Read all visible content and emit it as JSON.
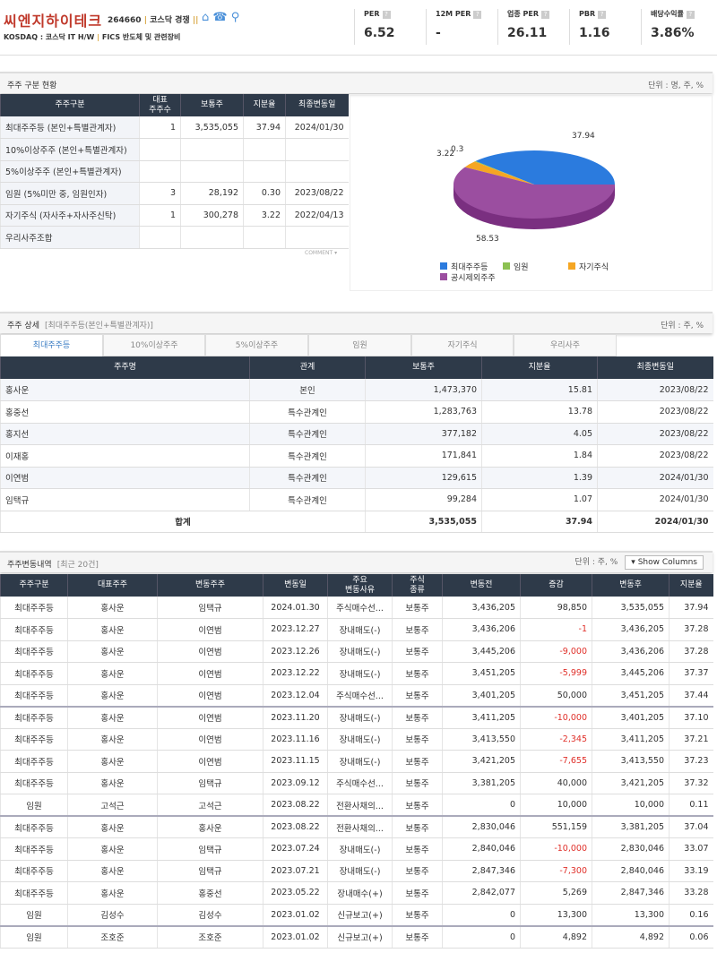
{
  "header": {
    "company": "씨엔지하이테크",
    "code": "264660",
    "market_info": "코스닥 경쟁",
    "sub_market": "KOSDAQ : 코스닥 IT H/W",
    "sector": "FICS 반도체 및 관련장비",
    "metrics": [
      {
        "label": "PER",
        "value": "6.52"
      },
      {
        "label": "12M PER",
        "value": "-"
      },
      {
        "label": "업종 PER",
        "value": "26.11"
      },
      {
        "label": "PBR",
        "value": "1.16"
      },
      {
        "label": "배당수익률",
        "value": "3.86%"
      }
    ]
  },
  "section1": {
    "title": "주주 구분 현황",
    "unit": "단위 : 명, 주, %",
    "headers": [
      "주주구분",
      "대표\n주주수",
      "보통주",
      "지분율",
      "최종변동일"
    ],
    "rows": [
      [
        "최대주주등 (본인+특별관계자)",
        "1",
        "3,535,055",
        "37.94",
        "2024/01/30"
      ],
      [
        "10%이상주주 (본인+특별관계자)",
        "",
        "",
        "",
        ""
      ],
      [
        "5%이상주주 (본인+특별관계자)",
        "",
        "",
        "",
        ""
      ],
      [
        "임원 (5%미만 중, 임원인자)",
        "3",
        "28,192",
        "0.30",
        "2023/08/22"
      ],
      [
        "자기주식 (자사주+자사주신탁)",
        "1",
        "300,278",
        "3.22",
        "2022/04/13"
      ],
      [
        "우리사주조합",
        "",
        "",
        "",
        ""
      ]
    ],
    "comment": "COMMENT"
  },
  "chart_data": {
    "type": "pie",
    "slices": [
      {
        "name": "최대주주등",
        "value": 37.94,
        "color": "#2b7bde"
      },
      {
        "name": "임원",
        "value": 0.3,
        "color": "#8cc152"
      },
      {
        "name": "자기주식",
        "value": 3.22,
        "color": "#f5a623"
      },
      {
        "name": "공시제외주주",
        "value": 58.53,
        "color": "#9b4ea0"
      }
    ],
    "labels": [
      "37.94",
      "0.3",
      "3.22",
      "58.53"
    ],
    "legend": "bottom"
  },
  "section2": {
    "title": "주주 상세",
    "subtitle": "[최대주주등(본인+특별관계자)]",
    "unit": "단위 : 주, %",
    "tabs": [
      "최대주주등",
      "10%이상주주",
      "5%이상주주",
      "임원",
      "자기주식",
      "우리사주"
    ],
    "active_tab": 0,
    "headers": [
      "주주명",
      "관계",
      "보통주",
      "지분율",
      "최종변동일"
    ],
    "rows": [
      [
        "홍사운",
        "본인",
        "1,473,370",
        "15.81",
        "2023/08/22"
      ],
      [
        "홍중선",
        "특수관계인",
        "1,283,763",
        "13.78",
        "2023/08/22"
      ],
      [
        "홍지선",
        "특수관계인",
        "377,182",
        "4.05",
        "2023/08/22"
      ],
      [
        "이재홍",
        "특수관계인",
        "171,841",
        "1.84",
        "2023/08/22"
      ],
      [
        "이연범",
        "특수관계인",
        "129,615",
        "1.39",
        "2024/01/30"
      ],
      [
        "임택규",
        "특수관계인",
        "99,284",
        "1.07",
        "2024/01/30"
      ]
    ],
    "total": [
      "합계",
      "3,535,055",
      "37.94",
      "2024/01/30"
    ]
  },
  "section3": {
    "title": "주주변동내역",
    "subtitle": "[최근 20건]",
    "unit": "단위 : 주, %",
    "show_columns": "Show Columns",
    "headers": [
      "주주구분",
      "대표주주",
      "변동주주",
      "변동일",
      "주요\n변동사유",
      "주식\n종류",
      "변동전",
      "증감",
      "변동후",
      "지분율"
    ],
    "rows": [
      [
        "최대주주등",
        "홍사운",
        "임택규",
        "2024.01.30",
        "주식매수선...",
        "보통주",
        "3,436,205",
        "98,850",
        "3,535,055",
        "37.94"
      ],
      [
        "최대주주등",
        "홍사운",
        "이연범",
        "2023.12.27",
        "장내매도(-)",
        "보통주",
        "3,436,206",
        "-1",
        "3,436,205",
        "37.28"
      ],
      [
        "최대주주등",
        "홍사운",
        "이연범",
        "2023.12.26",
        "장내매도(-)",
        "보통주",
        "3,445,206",
        "-9,000",
        "3,436,206",
        "37.28"
      ],
      [
        "최대주주등",
        "홍사운",
        "이연범",
        "2023.12.22",
        "장내매도(-)",
        "보통주",
        "3,451,205",
        "-5,999",
        "3,445,206",
        "37.37"
      ],
      [
        "최대주주등",
        "홍사운",
        "이연범",
        "2023.12.04",
        "주식매수선...",
        "보통주",
        "3,401,205",
        "50,000",
        "3,451,205",
        "37.44"
      ],
      [
        "최대주주등",
        "홍사운",
        "이연범",
        "2023.11.20",
        "장내매도(-)",
        "보통주",
        "3,411,205",
        "-10,000",
        "3,401,205",
        "37.10"
      ],
      [
        "최대주주등",
        "홍사운",
        "이연범",
        "2023.11.16",
        "장내매도(-)",
        "보통주",
        "3,413,550",
        "-2,345",
        "3,411,205",
        "37.21"
      ],
      [
        "최대주주등",
        "홍사운",
        "이연범",
        "2023.11.15",
        "장내매도(-)",
        "보통주",
        "3,421,205",
        "-7,655",
        "3,413,550",
        "37.23"
      ],
      [
        "최대주주등",
        "홍사운",
        "임택규",
        "2023.09.12",
        "주식매수선...",
        "보통주",
        "3,381,205",
        "40,000",
        "3,421,205",
        "37.32"
      ],
      [
        "임원",
        "고석근",
        "고석근",
        "2023.08.22",
        "전환사채의...",
        "보통주",
        "0",
        "10,000",
        "10,000",
        "0.11"
      ],
      [
        "최대주주등",
        "홍사운",
        "홍사운",
        "2023.08.22",
        "전환사채의...",
        "보통주",
        "2,830,046",
        "551,159",
        "3,381,205",
        "37.04"
      ],
      [
        "최대주주등",
        "홍사운",
        "임택규",
        "2023.07.24",
        "장내매도(-)",
        "보통주",
        "2,840,046",
        "-10,000",
        "2,830,046",
        "33.07"
      ],
      [
        "최대주주등",
        "홍사운",
        "임택규",
        "2023.07.21",
        "장내매도(-)",
        "보통주",
        "2,847,346",
        "-7,300",
        "2,840,046",
        "33.19"
      ],
      [
        "최대주주등",
        "홍사운",
        "홍중선",
        "2023.05.22",
        "장내매수(+)",
        "보통주",
        "2,842,077",
        "5,269",
        "2,847,346",
        "33.28"
      ],
      [
        "임원",
        "김성수",
        "김성수",
        "2023.01.02",
        "신규보고(+)",
        "보통주",
        "0",
        "13,300",
        "13,300",
        "0.16"
      ],
      [
        "임원",
        "조호준",
        "조호준",
        "2023.01.02",
        "신규보고(+)",
        "보통주",
        "0",
        "4,892",
        "4,892",
        "0.06"
      ]
    ]
  }
}
